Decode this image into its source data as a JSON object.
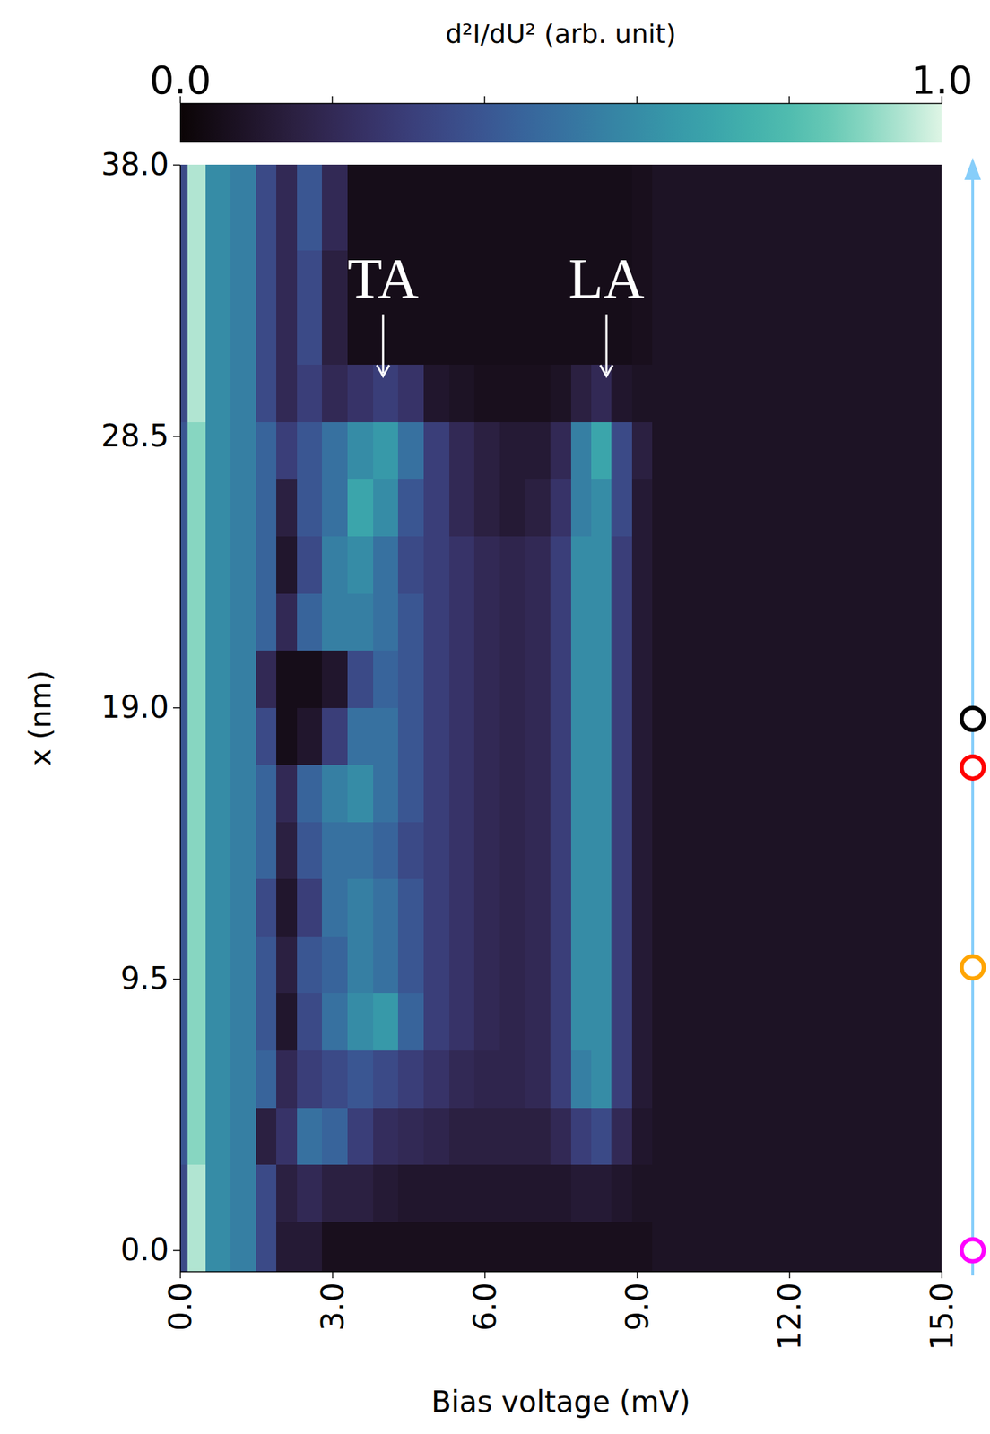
{
  "chart_data": {
    "type": "heatmap",
    "x_label": "Bias voltage (mV)",
    "y_label": "x (nm)",
    "xlim": [
      0,
      15
    ],
    "ylim": [
      -0.74,
      38
    ],
    "xticks": [
      {
        "value": 0,
        "label": "0.0"
      },
      {
        "value": 3,
        "label": "3.0"
      },
      {
        "value": 6,
        "label": "6.0"
      },
      {
        "value": 9,
        "label": "9.0"
      },
      {
        "value": 12,
        "label": "12.0"
      },
      {
        "value": 15,
        "label": "15.0"
      }
    ],
    "yticks": [
      {
        "value": 0,
        "label": "0.0"
      },
      9.5,
      {
        "value": 19,
        "label": "19.0"
      },
      28.5,
      {
        "value": 38,
        "label": "38.0"
      }
    ],
    "x_edges": [
      0,
      0.15,
      0.5,
      1.0,
      1.5,
      1.9,
      2.3,
      2.8,
      3.3,
      3.8,
      4.3,
      4.8,
      5.3,
      5.8,
      6.3,
      6.8,
      7.3,
      7.7,
      8.1,
      8.5,
      8.9,
      9.3,
      10,
      11,
      12,
      13,
      14,
      15
    ],
    "y_edges": [
      -0.74,
      1,
      3,
      5,
      7,
      9,
      11,
      13,
      15,
      17,
      19,
      21,
      23,
      25,
      27,
      29,
      31,
      33,
      35,
      38
    ],
    "z": [
      [
        0.35,
        0.95,
        0.6,
        0.55,
        0.35,
        0.12,
        0.12,
        0.06,
        0.06,
        0.06,
        0.06,
        0.06,
        0.06,
        0.06,
        0.06,
        0.06,
        0.06,
        0.06,
        0.06,
        0.06,
        0.06,
        0.08,
        0.08,
        0.08,
        0.08,
        0.08,
        0.08
      ],
      [
        0.35,
        0.95,
        0.6,
        0.55,
        0.35,
        0.15,
        0.2,
        0.15,
        0.15,
        0.12,
        0.1,
        0.1,
        0.1,
        0.1,
        0.1,
        0.1,
        0.1,
        0.12,
        0.12,
        0.1,
        0.08,
        0.08,
        0.08,
        0.08,
        0.08,
        0.08,
        0.08
      ],
      [
        0.4,
        0.9,
        0.6,
        0.55,
        0.15,
        0.25,
        0.5,
        0.45,
        0.3,
        0.22,
        0.2,
        0.18,
        0.15,
        0.15,
        0.15,
        0.15,
        0.2,
        0.3,
        0.35,
        0.2,
        0.1,
        0.08,
        0.08,
        0.08,
        0.08,
        0.08,
        0.08
      ],
      [
        0.4,
        0.9,
        0.6,
        0.55,
        0.45,
        0.2,
        0.3,
        0.35,
        0.4,
        0.35,
        0.3,
        0.25,
        0.2,
        0.18,
        0.18,
        0.2,
        0.3,
        0.55,
        0.6,
        0.3,
        0.12,
        0.08,
        0.08,
        0.08,
        0.08,
        0.08,
        0.08
      ],
      [
        0.4,
        0.9,
        0.6,
        0.55,
        0.4,
        0.1,
        0.35,
        0.5,
        0.6,
        0.65,
        0.45,
        0.3,
        0.25,
        0.2,
        0.18,
        0.2,
        0.3,
        0.6,
        0.6,
        0.3,
        0.12,
        0.08,
        0.08,
        0.08,
        0.08,
        0.08,
        0.08
      ],
      [
        0.4,
        0.9,
        0.6,
        0.55,
        0.4,
        0.15,
        0.4,
        0.45,
        0.55,
        0.5,
        0.4,
        0.3,
        0.25,
        0.2,
        0.18,
        0.2,
        0.3,
        0.6,
        0.6,
        0.3,
        0.12,
        0.08,
        0.08,
        0.08,
        0.08,
        0.08,
        0.08
      ],
      [
        0.4,
        0.9,
        0.6,
        0.55,
        0.35,
        0.1,
        0.3,
        0.5,
        0.55,
        0.5,
        0.4,
        0.3,
        0.25,
        0.2,
        0.18,
        0.2,
        0.3,
        0.6,
        0.6,
        0.3,
        0.12,
        0.08,
        0.08,
        0.08,
        0.08,
        0.08,
        0.08
      ],
      [
        0.4,
        0.9,
        0.6,
        0.55,
        0.45,
        0.15,
        0.4,
        0.5,
        0.5,
        0.45,
        0.35,
        0.3,
        0.25,
        0.2,
        0.18,
        0.2,
        0.3,
        0.6,
        0.6,
        0.3,
        0.12,
        0.08,
        0.08,
        0.08,
        0.08,
        0.08,
        0.08
      ],
      [
        0.4,
        0.9,
        0.6,
        0.55,
        0.45,
        0.2,
        0.45,
        0.55,
        0.6,
        0.5,
        0.4,
        0.3,
        0.25,
        0.2,
        0.18,
        0.2,
        0.3,
        0.6,
        0.6,
        0.3,
        0.12,
        0.08,
        0.08,
        0.08,
        0.08,
        0.08,
        0.08
      ],
      [
        0.4,
        0.9,
        0.6,
        0.55,
        0.35,
        0.05,
        0.1,
        0.3,
        0.5,
        0.5,
        0.4,
        0.3,
        0.25,
        0.2,
        0.18,
        0.2,
        0.3,
        0.6,
        0.6,
        0.3,
        0.12,
        0.08,
        0.08,
        0.08,
        0.08,
        0.08,
        0.08
      ],
      [
        0.4,
        0.9,
        0.6,
        0.55,
        0.2,
        0.05,
        0.05,
        0.1,
        0.35,
        0.45,
        0.4,
        0.3,
        0.25,
        0.2,
        0.18,
        0.2,
        0.3,
        0.6,
        0.6,
        0.3,
        0.12,
        0.08,
        0.08,
        0.08,
        0.08,
        0.08,
        0.08
      ],
      [
        0.4,
        0.9,
        0.6,
        0.55,
        0.45,
        0.2,
        0.45,
        0.55,
        0.55,
        0.5,
        0.4,
        0.3,
        0.25,
        0.2,
        0.18,
        0.2,
        0.3,
        0.6,
        0.6,
        0.3,
        0.12,
        0.08,
        0.08,
        0.08,
        0.08,
        0.08,
        0.08
      ],
      [
        0.4,
        0.9,
        0.6,
        0.55,
        0.45,
        0.1,
        0.35,
        0.55,
        0.6,
        0.5,
        0.35,
        0.3,
        0.25,
        0.2,
        0.18,
        0.2,
        0.3,
        0.6,
        0.6,
        0.3,
        0.12,
        0.08,
        0.08,
        0.08,
        0.08,
        0.08,
        0.08
      ],
      [
        0.4,
        0.9,
        0.6,
        0.55,
        0.45,
        0.15,
        0.4,
        0.5,
        0.7,
        0.6,
        0.4,
        0.3,
        0.2,
        0.15,
        0.12,
        0.15,
        0.25,
        0.55,
        0.6,
        0.35,
        0.12,
        0.08,
        0.08,
        0.08,
        0.08,
        0.08,
        0.08
      ],
      [
        0.4,
        0.9,
        0.6,
        0.55,
        0.45,
        0.3,
        0.4,
        0.5,
        0.6,
        0.65,
        0.5,
        0.3,
        0.2,
        0.15,
        0.12,
        0.12,
        0.2,
        0.55,
        0.7,
        0.35,
        0.15,
        0.08,
        0.08,
        0.08,
        0.08,
        0.08,
        0.08
      ],
      [
        0.35,
        0.95,
        0.6,
        0.55,
        0.35,
        0.2,
        0.3,
        0.2,
        0.25,
        0.3,
        0.25,
        0.1,
        0.08,
        0.06,
        0.06,
        0.06,
        0.08,
        0.15,
        0.2,
        0.1,
        0.08,
        0.08,
        0.08,
        0.08,
        0.08,
        0.08,
        0.08
      ],
      [
        0.35,
        0.95,
        0.6,
        0.55,
        0.35,
        0.2,
        0.35,
        0.15,
        0.05,
        0.05,
        0.05,
        0.05,
        0.05,
        0.05,
        0.05,
        0.05,
        0.05,
        0.05,
        0.05,
        0.05,
        0.06,
        0.08,
        0.08,
        0.08,
        0.08,
        0.08,
        0.08
      ],
      [
        0.35,
        0.95,
        0.6,
        0.55,
        0.35,
        0.2,
        0.35,
        0.15,
        0.05,
        0.05,
        0.05,
        0.05,
        0.05,
        0.05,
        0.05,
        0.05,
        0.05,
        0.05,
        0.05,
        0.05,
        0.06,
        0.08,
        0.08,
        0.08,
        0.08,
        0.08,
        0.08
      ],
      [
        0.35,
        0.95,
        0.6,
        0.55,
        0.35,
        0.2,
        0.4,
        0.2,
        0.05,
        0.05,
        0.05,
        0.05,
        0.05,
        0.05,
        0.05,
        0.05,
        0.05,
        0.05,
        0.05,
        0.05,
        0.06,
        0.08,
        0.08,
        0.08,
        0.08,
        0.08,
        0.08
      ]
    ],
    "colorbar": {
      "label": "d²I/dU² (arb. unit)",
      "range": [
        0,
        1
      ],
      "ticks": [
        {
          "value": 0,
          "label": "0.0"
        },
        {
          "value": 1,
          "label": "1.0"
        }
      ],
      "minor_ticks": [
        0.2,
        0.4,
        0.6,
        0.8
      ]
    },
    "annotations": [
      {
        "text": "TA",
        "xy": [
          4.0,
          30.6
        ],
        "xytext": [
          4.0,
          33.8
        ]
      },
      {
        "text": "LA",
        "xy": [
          8.4,
          30.6
        ],
        "xytext": [
          8.4,
          33.8
        ]
      }
    ],
    "markers": {
      "y": [
        0,
        9.9,
        16.9,
        18.6
      ],
      "colors": [
        "#ff00ff",
        "#ffa500",
        "#ff0000",
        "#000000"
      ]
    }
  }
}
